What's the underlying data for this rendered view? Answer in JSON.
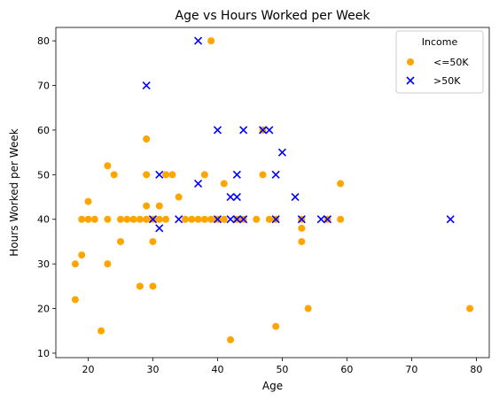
{
  "chart_data": {
    "type": "scatter",
    "title": "Age vs Hours Worked per Week",
    "xlabel": "Age",
    "ylabel": "Hours Worked per Week",
    "xlim": [
      15,
      82
    ],
    "ylim": [
      9,
      83
    ],
    "xticks": [
      20,
      30,
      40,
      50,
      60,
      70,
      80
    ],
    "yticks": [
      10,
      20,
      30,
      40,
      50,
      60,
      70,
      80
    ],
    "grid": false,
    "legend": {
      "title": "Income",
      "placement": "top-right"
    },
    "series": [
      {
        "name": "<=50K",
        "marker": "circle",
        "color": "#FFA500",
        "points": [
          [
            18,
            30
          ],
          [
            18,
            22
          ],
          [
            19,
            32
          ],
          [
            19,
            40
          ],
          [
            20,
            40
          ],
          [
            20,
            44
          ],
          [
            21,
            40
          ],
          [
            22,
            15
          ],
          [
            23,
            52
          ],
          [
            23,
            40
          ],
          [
            23,
            30
          ],
          [
            24,
            50
          ],
          [
            25,
            40
          ],
          [
            25,
            35
          ],
          [
            26,
            40
          ],
          [
            27,
            40
          ],
          [
            28,
            40
          ],
          [
            28,
            25
          ],
          [
            29,
            58
          ],
          [
            29,
            50
          ],
          [
            29,
            43
          ],
          [
            29,
            40
          ],
          [
            30,
            35
          ],
          [
            30,
            25
          ],
          [
            30,
            40
          ],
          [
            31,
            43
          ],
          [
            31,
            40
          ],
          [
            32,
            50
          ],
          [
            32,
            40
          ],
          [
            33,
            50
          ],
          [
            34,
            45
          ],
          [
            35,
            40
          ],
          [
            36,
            40
          ],
          [
            37,
            40
          ],
          [
            38,
            50
          ],
          [
            38,
            40
          ],
          [
            39,
            80
          ],
          [
            39,
            40
          ],
          [
            40,
            40
          ],
          [
            41,
            48
          ],
          [
            41,
            40
          ],
          [
            42,
            13
          ],
          [
            43,
            40
          ],
          [
            44,
            40
          ],
          [
            46,
            40
          ],
          [
            47,
            60
          ],
          [
            47,
            50
          ],
          [
            48,
            40
          ],
          [
            49,
            16
          ],
          [
            49,
            40
          ],
          [
            53,
            38
          ],
          [
            53,
            35
          ],
          [
            53,
            40
          ],
          [
            54,
            20
          ],
          [
            57,
            40
          ],
          [
            59,
            48
          ],
          [
            59,
            40
          ],
          [
            79,
            20
          ]
        ]
      },
      {
        "name": ">50K",
        "marker": "x",
        "color": "#0000FF",
        "points": [
          [
            29,
            70
          ],
          [
            30,
            40
          ],
          [
            31,
            50
          ],
          [
            31,
            38
          ],
          [
            34,
            40
          ],
          [
            37,
            80
          ],
          [
            37,
            48
          ],
          [
            40,
            60
          ],
          [
            40,
            40
          ],
          [
            42,
            45
          ],
          [
            42,
            40
          ],
          [
            43,
            50
          ],
          [
            43,
            45
          ],
          [
            43,
            40
          ],
          [
            44,
            60
          ],
          [
            44,
            40
          ],
          [
            47,
            60
          ],
          [
            48,
            60
          ],
          [
            49,
            50
          ],
          [
            49,
            40
          ],
          [
            50,
            55
          ],
          [
            52,
            45
          ],
          [
            53,
            40
          ],
          [
            56,
            40
          ],
          [
            57,
            40
          ],
          [
            76,
            40
          ]
        ]
      }
    ]
  }
}
